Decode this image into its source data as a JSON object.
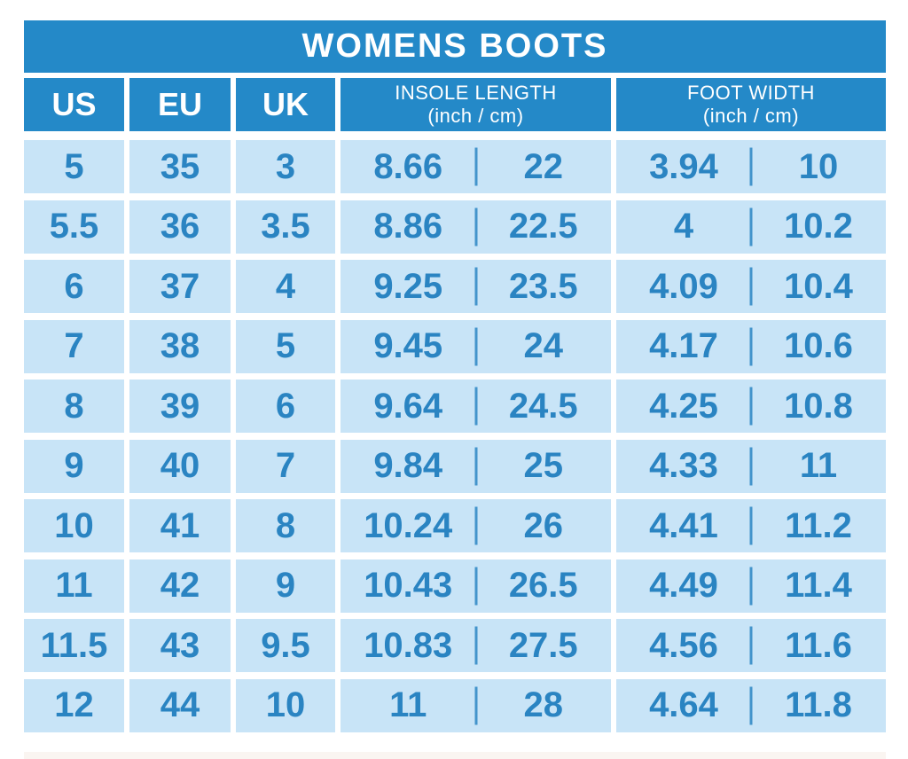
{
  "title": "WOMENS BOOTS",
  "columns": {
    "us": "US",
    "eu": "EU",
    "uk": "UK",
    "insole_line1": "INSOLE LENGTH",
    "insole_line2": "(inch / cm)",
    "foot_line1": "FOOT WIDTH",
    "foot_line2": "(inch / cm)"
  },
  "rows": [
    {
      "us": "5",
      "eu": "35",
      "uk": "3",
      "insole_inch": "8.66",
      "insole_cm": "22",
      "foot_inch": "3.94",
      "foot_cm": "10"
    },
    {
      "us": "5.5",
      "eu": "36",
      "uk": "3.5",
      "insole_inch": "8.86",
      "insole_cm": "22.5",
      "foot_inch": "4",
      "foot_cm": "10.2"
    },
    {
      "us": "6",
      "eu": "37",
      "uk": "4",
      "insole_inch": "9.25",
      "insole_cm": "23.5",
      "foot_inch": "4.09",
      "foot_cm": "10.4"
    },
    {
      "us": "7",
      "eu": "38",
      "uk": "5",
      "insole_inch": "9.45",
      "insole_cm": "24",
      "foot_inch": "4.17",
      "foot_cm": "10.6"
    },
    {
      "us": "8",
      "eu": "39",
      "uk": "6",
      "insole_inch": "9.64",
      "insole_cm": "24.5",
      "foot_inch": "4.25",
      "foot_cm": "10.8"
    },
    {
      "us": "9",
      "eu": "40",
      "uk": "7",
      "insole_inch": "9.84",
      "insole_cm": "25",
      "foot_inch": "4.33",
      "foot_cm": "11"
    },
    {
      "us": "10",
      "eu": "41",
      "uk": "8",
      "insole_inch": "10.24",
      "insole_cm": "26",
      "foot_inch": "4.41",
      "foot_cm": "11.2"
    },
    {
      "us": "11",
      "eu": "42",
      "uk": "9",
      "insole_inch": "10.43",
      "insole_cm": "26.5",
      "foot_inch": "4.49",
      "foot_cm": "11.4"
    },
    {
      "us": "11.5",
      "eu": "43",
      "uk": "9.5",
      "insole_inch": "10.83",
      "insole_cm": "27.5",
      "foot_inch": "4.56",
      "foot_cm": "11.6"
    },
    {
      "us": "12",
      "eu": "44",
      "uk": "10",
      "insole_inch": "11",
      "insole_cm": "28",
      "foot_inch": "4.64",
      "foot_cm": "11.8"
    }
  ],
  "chart_data": {
    "type": "table",
    "title": "WOMENS BOOTS",
    "columns": [
      "US",
      "EU",
      "UK",
      "Insole length (inch)",
      "Insole length (cm)",
      "Foot width (inch)",
      "Foot width (cm)"
    ],
    "rows": [
      [
        5,
        35,
        3,
        8.66,
        22,
        3.94,
        10
      ],
      [
        5.5,
        36,
        3.5,
        8.86,
        22.5,
        4,
        10.2
      ],
      [
        6,
        37,
        4,
        9.25,
        23.5,
        4.09,
        10.4
      ],
      [
        7,
        38,
        5,
        9.45,
        24,
        4.17,
        10.6
      ],
      [
        8,
        39,
        6,
        9.64,
        24.5,
        4.25,
        10.8
      ],
      [
        9,
        40,
        7,
        9.84,
        25,
        4.33,
        11
      ],
      [
        10,
        41,
        8,
        10.24,
        26,
        4.41,
        11.2
      ],
      [
        11,
        42,
        9,
        10.43,
        26.5,
        4.49,
        11.4
      ],
      [
        11.5,
        43,
        9.5,
        10.83,
        27.5,
        4.56,
        11.6
      ],
      [
        12,
        44,
        10,
        11,
        28,
        4.64,
        11.8
      ]
    ]
  },
  "colors": {
    "header_blue": "#2489c8",
    "cell_blue": "#c8e4f7",
    "text_blue": "#2a84c2",
    "divider_blue": "#4394cb",
    "strip_color": "#faf5f1"
  }
}
